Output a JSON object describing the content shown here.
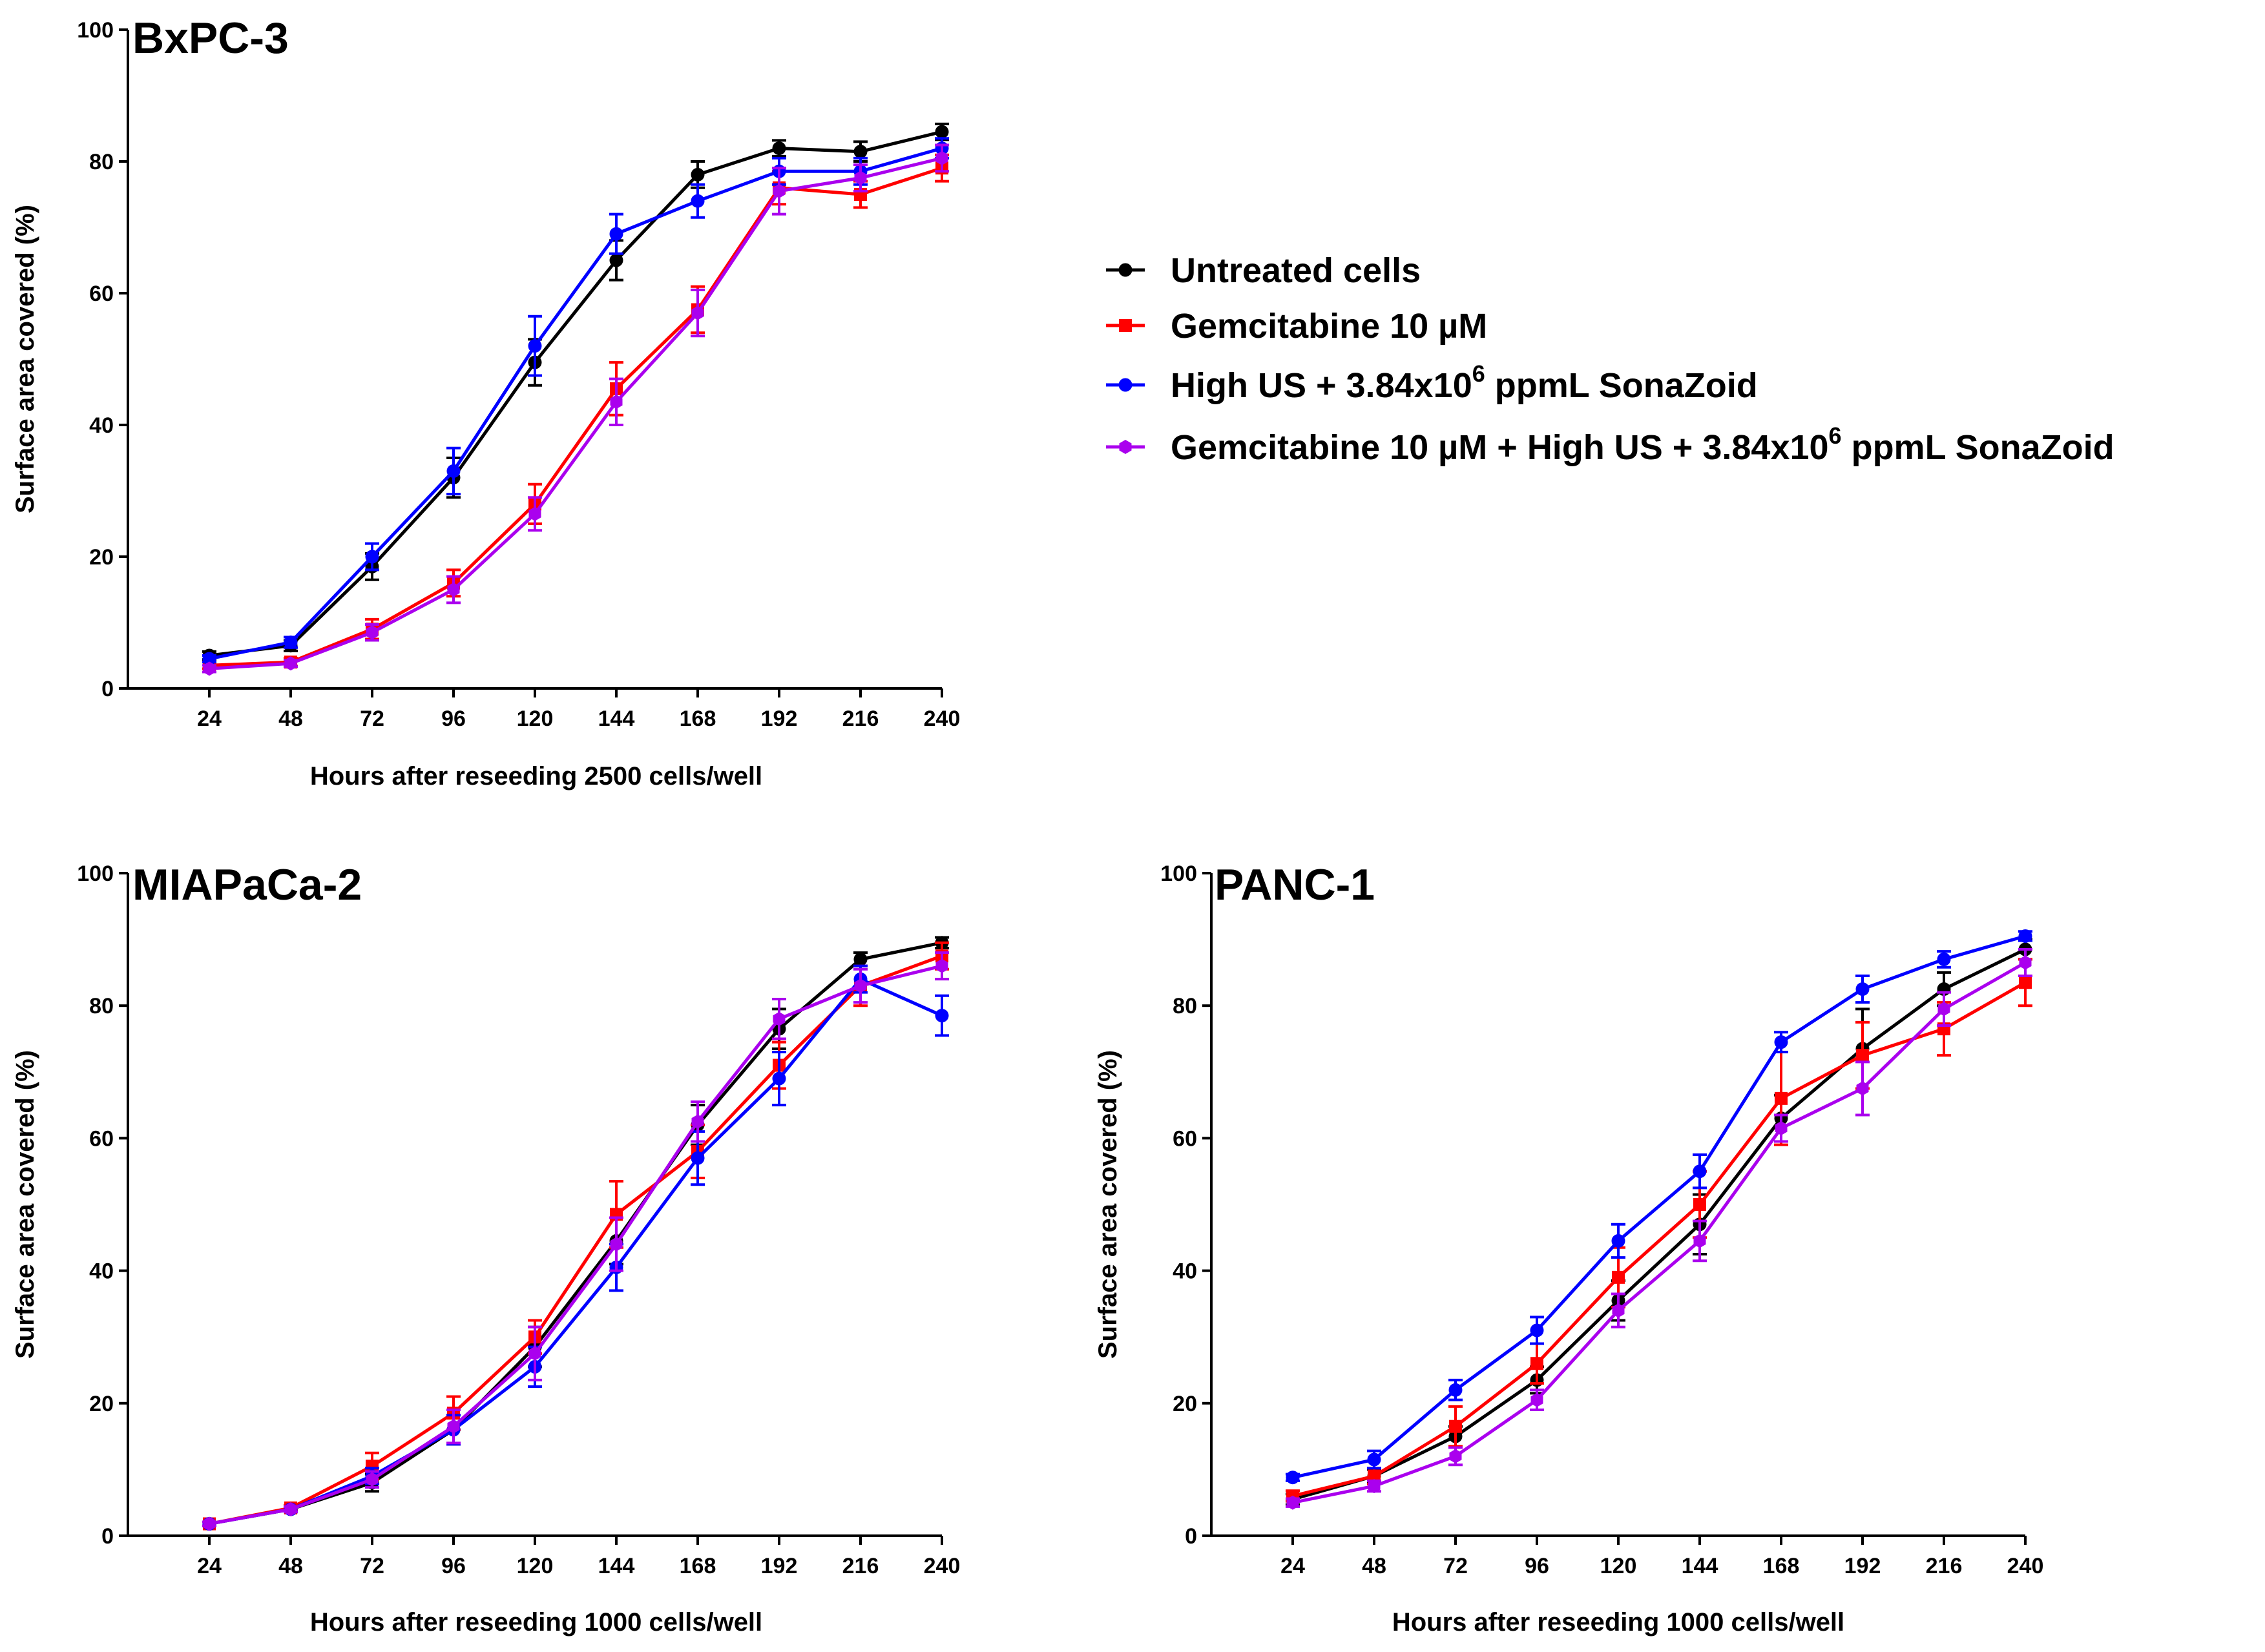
{
  "chart_data": {
    "type": "line",
    "legend": {
      "placement": "right",
      "entries": [
        {
          "key": "untreated",
          "label": "Untreated cells",
          "color": "#000000"
        },
        {
          "key": "gem",
          "label": "Gemcitabine 10 µM",
          "color": "#ff0000"
        },
        {
          "key": "us",
          "label_parts": [
            "High US + 3.84x10",
            "6",
            " ppmL SonaZoid"
          ],
          "color": "#0000ff"
        },
        {
          "key": "combo",
          "label_parts": [
            "Gemcitabine 10 µM + High US + 3.84x10",
            "6",
            " ppmL SonaZoid"
          ],
          "color": "#aa00ee"
        }
      ]
    },
    "panels": [
      {
        "title": "BxPC-3",
        "xlabel": "Hours after reseeding 2500 cells/well",
        "ylabel": "Surface area covered (%)",
        "x": [
          24,
          48,
          72,
          96,
          120,
          144,
          168,
          192,
          216,
          240
        ],
        "xlim": [
          0,
          240
        ],
        "ylim": [
          0,
          100
        ],
        "yticks": [
          0,
          20,
          40,
          60,
          80,
          100
        ],
        "series": [
          {
            "key": "untreated",
            "values": [
              5,
              6.5,
              18.5,
              32,
              49.5,
              65,
              78,
              82,
              81.5,
              84.5
            ],
            "errors": [
              0.6,
              0.8,
              2,
              3,
              3.5,
              3,
              2,
              1.2,
              1.5,
              1.2
            ]
          },
          {
            "key": "gem",
            "values": [
              3.5,
              4,
              9,
              16,
              28,
              45.5,
              57.5,
              76,
              75,
              79
            ],
            "errors": [
              0.5,
              0.6,
              1.5,
              2,
              3,
              4,
              3.5,
              2.5,
              2,
              2
            ]
          },
          {
            "key": "us",
            "values": [
              4.5,
              7,
              20,
              33,
              52,
              69,
              74,
              78.5,
              78.5,
              82
            ],
            "errors": [
              0.5,
              0.8,
              2,
              3.5,
              4.5,
              3,
              2.5,
              2,
              2,
              1.5
            ]
          },
          {
            "key": "combo",
            "values": [
              3,
              3.8,
              8.5,
              15,
              26.5,
              43.5,
              57,
              75.5,
              77.5,
              80.5
            ],
            "errors": [
              0.5,
              0.5,
              1.2,
              2,
              2.5,
              3.5,
              3.5,
              3.5,
              2,
              2
            ]
          }
        ]
      },
      {
        "title": "MIAPaCa-2",
        "xlabel": "Hours after reseeding 1000 cells/well",
        "ylabel": "Surface area covered (%)",
        "x": [
          24,
          48,
          72,
          96,
          120,
          144,
          168,
          192,
          216,
          240
        ],
        "xlim": [
          0,
          240
        ],
        "ylim": [
          0,
          100
        ],
        "yticks": [
          0,
          20,
          40,
          60,
          80,
          100
        ],
        "series": [
          {
            "key": "untreated",
            "values": [
              1.8,
              4,
              8,
              16,
              28.5,
              44.5,
              62,
              76.5,
              87,
              89.5
            ],
            "errors": [
              0.3,
              0.4,
              1.3,
              2.2,
              3,
              3.5,
              3,
              3,
              1,
              0.8
            ]
          },
          {
            "key": "gem",
            "values": [
              1.8,
              4.2,
              10.5,
              18.5,
              30,
              48.5,
              58,
              71,
              83,
              87.5
            ],
            "errors": [
              0.3,
              0.4,
              2,
              2.5,
              2.5,
              5,
              4,
              3.5,
              3,
              2
            ]
          },
          {
            "key": "us",
            "values": [
              1.8,
              4,
              9,
              16,
              25.5,
              40.5,
              57,
              69,
              84,
              78.5
            ],
            "errors": [
              0.3,
              0.4,
              1.2,
              2.2,
              3,
              3.5,
              4,
              4,
              2,
              3
            ]
          },
          {
            "key": "combo",
            "values": [
              1.8,
              4,
              8.5,
              16.5,
              27.5,
              44,
              62.5,
              78,
              83,
              86
            ],
            "errors": [
              0.3,
              0.4,
              1.2,
              2.5,
              4,
              4,
              3,
              3,
              2.5,
              2
            ]
          }
        ]
      },
      {
        "title": "PANC-1",
        "xlabel": "Hours after reseeding 1000 cells/well",
        "ylabel": "Surface area covered (%)",
        "x": [
          24,
          48,
          72,
          96,
          120,
          144,
          168,
          192,
          216,
          240
        ],
        "xlim": [
          0,
          240
        ],
        "ylim": [
          0,
          100
        ],
        "yticks": [
          0,
          20,
          40,
          60,
          80,
          100
        ],
        "series": [
          {
            "key": "untreated",
            "values": [
              5.5,
              9,
              15,
              23.5,
              35.5,
              47,
              63,
              73.5,
              82.5,
              88.5
            ],
            "errors": [
              0.8,
              1,
              1.5,
              2,
              3,
              4.5,
              3.5,
              6,
              2.5,
              1.5
            ]
          },
          {
            "key": "gem",
            "values": [
              6,
              9,
              16.5,
              26,
              39,
              50,
              66,
              72.5,
              76.5,
              83.5
            ],
            "errors": [
              0.8,
              1.2,
              3,
              3,
              4.5,
              5,
              7,
              5,
              4,
              3.5
            ]
          },
          {
            "key": "us",
            "values": [
              8.8,
              11.5,
              22,
              31,
              44.5,
              55,
              74.5,
              82.5,
              87,
              90.5
            ],
            "errors": [
              0.5,
              1.3,
              1.5,
              2,
              2.5,
              2.5,
              1.5,
              2,
              1.2,
              0.7
            ]
          },
          {
            "key": "combo",
            "values": [
              5,
              7.5,
              12,
              20.5,
              34,
              44.5,
              61.5,
              67.5,
              79.5,
              86.5
            ],
            "errors": [
              0.6,
              0.8,
              1.3,
              1.5,
              2.5,
              3,
              2,
              4,
              2.5,
              2
            ]
          }
        ]
      }
    ]
  }
}
